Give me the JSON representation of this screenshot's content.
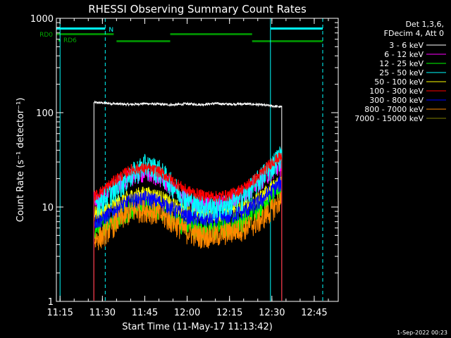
{
  "chart_data": {
    "type": "line",
    "title": "RHESSI Observing Summary Count Rates",
    "xlabel": "Start Time (11-May-17 11:13:42)",
    "ylabel": "Count Rate (s⁻¹ detector⁻¹)",
    "yscale": "log",
    "ylim": [
      1,
      1000
    ],
    "xlim": [
      "11:13:42",
      "12:53:30"
    ],
    "x_ticks": [
      "11:15",
      "11:30",
      "11:45",
      "12:00",
      "12:15",
      "12:30",
      "12:45"
    ],
    "y_ticks": [
      "1",
      "10",
      "100",
      "1000"
    ],
    "grid": false,
    "legend_position": "right",
    "legend_header": [
      "Det 1,3,6,",
      "FDecim 4, Att 0"
    ],
    "timestamp": "1-Sep-2022 00:23",
    "flag_labels": [
      "N",
      "RD0",
      "RD6"
    ],
    "flags": {
      "night": [
        [
          "11:13:42",
          "11:31:00"
        ],
        [
          "12:29:30",
          "12:48:00"
        ]
      ],
      "rd0": [
        [
          "11:13:42",
          "11:34:00"
        ],
        [
          "11:54:00",
          "12:23:00"
        ]
      ],
      "rd6": [
        [
          "11:35:00",
          "11:54:00"
        ],
        [
          "12:23:00",
          "12:48:00"
        ]
      ]
    },
    "verticals": [
      {
        "time": "11:15:00",
        "style": "solid"
      },
      {
        "time": "11:31:00",
        "style": "dashed"
      },
      {
        "time": "12:29:30",
        "style": "solid"
      },
      {
        "time": "12:48:00",
        "style": "dashed"
      }
    ],
    "data_start": "11:27:00",
    "data_end": "12:33:30",
    "series": [
      {
        "name": "3 - 6 keV",
        "color": "#ffffff",
        "x": [
          "11:27",
          "11:30",
          "11:35",
          "11:40",
          "11:45",
          "11:50",
          "11:55",
          "12:00",
          "12:05",
          "12:10",
          "12:15",
          "12:20",
          "12:25",
          "12:30",
          "12:33"
        ],
        "values": [
          128,
          127,
          124,
          122,
          125,
          123,
          121,
          124,
          122,
          125,
          123,
          124,
          122,
          118,
          115
        ]
      },
      {
        "name": "6 - 12 keV",
        "color": "#ff00ff",
        "x": [
          "11:27",
          "11:30",
          "11:35",
          "11:40",
          "11:45",
          "11:50",
          "11:55",
          "12:00",
          "12:05",
          "12:10",
          "12:15",
          "12:20",
          "12:25",
          "12:30",
          "12:33"
        ],
        "values": [
          12,
          13,
          17,
          21,
          23,
          21,
          16,
          12,
          11,
          11,
          12,
          14,
          18,
          24,
          27
        ]
      },
      {
        "name": "12 - 25 keV",
        "color": "#00ff00",
        "x": [
          "11:27",
          "11:30",
          "11:35",
          "11:40",
          "11:45",
          "11:50",
          "11:55",
          "12:00",
          "12:05",
          "12:10",
          "12:15",
          "12:20",
          "12:25",
          "12:30",
          "12:33"
        ],
        "values": [
          6,
          6.5,
          8,
          10,
          11,
          10,
          8,
          6.5,
          6,
          6,
          6.5,
          7.5,
          10,
          14,
          16
        ]
      },
      {
        "name": "25 - 50 keV",
        "color": "#00ffff",
        "x": [
          "11:27",
          "11:30",
          "11:35",
          "11:40",
          "11:45",
          "11:50",
          "11:55",
          "12:00",
          "12:05",
          "12:10",
          "12:15",
          "12:20",
          "12:25",
          "12:30",
          "12:33"
        ],
        "values": [
          11,
          12,
          16,
          22,
          28,
          25,
          17,
          12,
          10.5,
          10,
          11,
          13,
          19,
          28,
          35
        ]
      },
      {
        "name": "50 - 100 keV",
        "color": "#ffff00",
        "x": [
          "11:27",
          "11:30",
          "11:35",
          "11:40",
          "11:45",
          "11:50",
          "11:55",
          "12:00",
          "12:05",
          "12:10",
          "12:15",
          "12:20",
          "12:25",
          "12:30",
          "12:33"
        ],
        "values": [
          8.5,
          9,
          11,
          13,
          14,
          13,
          10.5,
          9,
          8.5,
          8.5,
          9,
          10,
          12,
          16,
          19
        ]
      },
      {
        "name": "100 - 300 keV",
        "color": "#ff0000",
        "x": [
          "11:27",
          "11:30",
          "11:35",
          "11:40",
          "11:45",
          "11:50",
          "11:55",
          "12:00",
          "12:05",
          "12:10",
          "12:15",
          "12:20",
          "12:25",
          "12:30",
          "12:33"
        ],
        "values": [
          13,
          15,
          20,
          25,
          26,
          24,
          19,
          15,
          13.5,
          13,
          13.5,
          16,
          21,
          30,
          34
        ]
      },
      {
        "name": "300 - 800 keV",
        "color": "#0000ff",
        "x": [
          "11:27",
          "11:30",
          "11:35",
          "11:40",
          "11:45",
          "11:50",
          "11:55",
          "12:00",
          "12:05",
          "12:10",
          "12:15",
          "12:20",
          "12:25",
          "12:30",
          "12:33"
        ],
        "values": [
          7,
          7.5,
          9.5,
          11.5,
          12.5,
          11.5,
          9.5,
          8,
          7.5,
          7.5,
          8,
          9,
          11,
          15,
          18
        ]
      },
      {
        "name": "800 - 7000 keV",
        "color": "#ff8800",
        "x": [
          "11:27",
          "11:30",
          "11:35",
          "11:40",
          "11:45",
          "11:50",
          "11:55",
          "12:00",
          "12:05",
          "12:10",
          "12:15",
          "12:20",
          "12:25",
          "12:30",
          "12:33"
        ],
        "values": [
          4.5,
          5,
          7,
          9,
          9.5,
          8.5,
          7,
          5.5,
          5,
          5,
          5.5,
          6,
          7,
          9.5,
          12
        ]
      },
      {
        "name": "7000 - 15000 keV",
        "color": "#808000",
        "x": [],
        "values": []
      }
    ]
  }
}
